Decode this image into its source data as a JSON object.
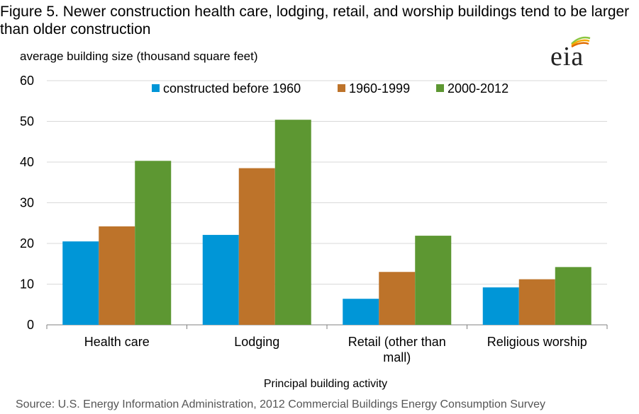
{
  "title": "Figure 5. Newer construction health care, lodging, retail, and worship buildings tend to be larger than older construction",
  "logo": {
    "text": "eia",
    "icon": "eia-logo-icon",
    "colors": [
      "#8cc63f",
      "#f7a800",
      "#e06c00"
    ]
  },
  "source": "Source: U.S. Energy Information Administration,  2012 Commercial Buildings Energy Consumption Survey",
  "chart_data": {
    "type": "bar",
    "title": "Figure 5. Newer construction health care, lodging, retail, and worship buildings tend to be larger than older construction",
    "ylabel": "average building size (thousand square feet)",
    "xlabel": "Principal building activity",
    "ylim": [
      0,
      60
    ],
    "yticks": [
      0,
      10,
      20,
      30,
      40,
      50,
      60
    ],
    "grid": true,
    "legend_position": "top",
    "categories": [
      [
        "Health care"
      ],
      [
        "Lodging"
      ],
      [
        "Retail (other than",
        "mall)"
      ],
      [
        "Religious worship"
      ]
    ],
    "series": [
      {
        "name": "constructed before 1960",
        "color": "#0096d7",
        "values": [
          20.5,
          22.1,
          6.4,
          9.2
        ]
      },
      {
        "name": "1960-1999",
        "color": "#bd732a",
        "values": [
          24.2,
          38.5,
          13.0,
          11.2
        ]
      },
      {
        "name": "2000-2012",
        "color": "#5d9732",
        "values": [
          40.3,
          50.4,
          21.9,
          14.2
        ]
      }
    ]
  }
}
